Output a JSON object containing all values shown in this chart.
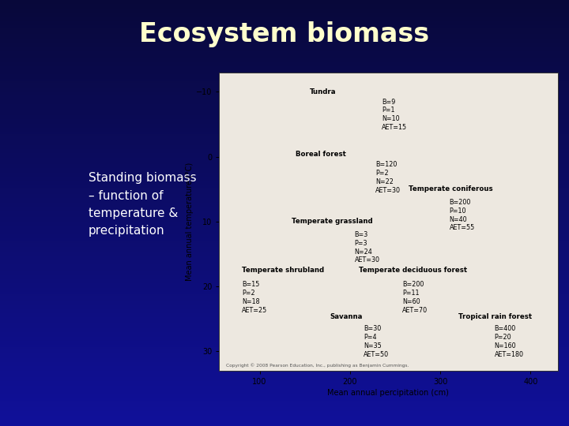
{
  "title": "Ecosystem biomass",
  "subtitle": "Standing biomass\n– function of\ntemperature &\nprecipitation",
  "bg_color_top": "#08083a",
  "bg_color_mid": "#1a1a7a",
  "bg_color_bottom": "#2a2a9a",
  "title_color": "#ffffcc",
  "subtitle_color": "#ffffff",
  "chart_bg": "#ede8e0",
  "ylabel": "Mean annual temperature (°C)",
  "xlabel": "Mean annual percipitation (cm)",
  "yticks": [
    -10,
    0,
    10,
    20,
    30
  ],
  "xticks": [
    100,
    200,
    300,
    400
  ],
  "ylim": [
    -13,
    33
  ],
  "xlim": [
    55,
    430
  ],
  "copyright": "Copyright © 2008 Pearson Education, Inc., publishing as Benjamin Cummings.",
  "biomes": [
    {
      "name": "Tundra",
      "name_x": 155,
      "name_y": -9.5,
      "stats": "B=9\nP=1\nN=10\nAET=15",
      "stats_x": 235,
      "stats_y": -9.0
    },
    {
      "name": "Boreal forest",
      "name_x": 140,
      "name_y": 0.2,
      "stats": "B=120\nP=2\nN=22\nAET=30",
      "stats_x": 228,
      "stats_y": 0.7
    },
    {
      "name": "Temperate coniferous",
      "name_x": 265,
      "name_y": 5.5,
      "stats": "B=200\nP=10\nN=40\nAET=55",
      "stats_x": 310,
      "stats_y": 6.5
    },
    {
      "name": "Temperate grassland",
      "name_x": 135,
      "name_y": 10.5,
      "stats": "B=3\nP=3\nN=24\nAET=30",
      "stats_x": 205,
      "stats_y": 11.5
    },
    {
      "name": "Temperate shrubland",
      "name_x": 80,
      "name_y": 18.0,
      "stats": "B=15\nP=2\nN=18\nAET=25",
      "stats_x": 80,
      "stats_y": 19.2
    },
    {
      "name": "Temperate deciduous forest",
      "name_x": 210,
      "name_y": 18.0,
      "stats": "B=200\nP=11\nN=60\nAET=70",
      "stats_x": 258,
      "stats_y": 19.2
    },
    {
      "name": "Savanna",
      "name_x": 178,
      "name_y": 25.2,
      "stats": "B=30\nP=4\nN=35\nAET=50",
      "stats_x": 215,
      "stats_y": 26.0
    },
    {
      "name": "Tropical rain forest",
      "name_x": 320,
      "name_y": 25.2,
      "stats": "B=400\nP=20\nN=160\nAET=180",
      "stats_x": 360,
      "stats_y": 26.0
    }
  ]
}
